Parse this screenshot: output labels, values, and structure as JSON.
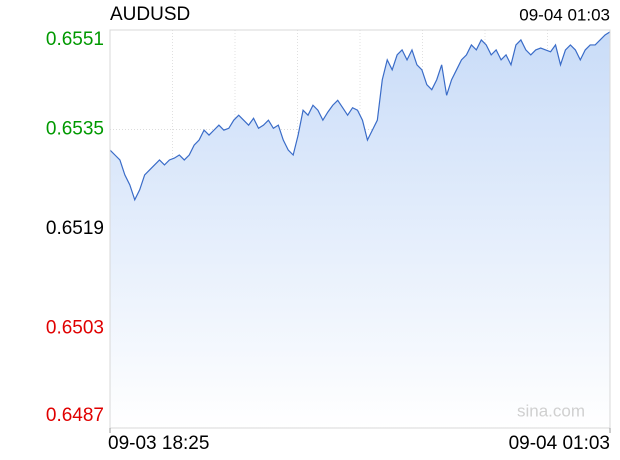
{
  "chart_data": {
    "type": "area-line",
    "title": "AUDUSD",
    "timestamp": "09-04 01:03",
    "watermark": "sina.com",
    "values": [
      0.65317,
      0.65309,
      0.65301,
      0.65277,
      0.65261,
      0.65237,
      0.65253,
      0.65277,
      0.65285,
      0.65293,
      0.65301,
      0.65293,
      0.65301,
      0.65304,
      0.65309,
      0.65301,
      0.65309,
      0.65325,
      0.65333,
      0.65349,
      0.65341,
      0.65349,
      0.65357,
      0.65349,
      0.65352,
      0.65365,
      0.65373,
      0.65365,
      0.65357,
      0.65368,
      0.65352,
      0.65357,
      0.65365,
      0.65352,
      0.65357,
      0.65333,
      0.65317,
      0.65309,
      0.65341,
      0.65381,
      0.65373,
      0.65389,
      0.65381,
      0.65365,
      0.65378,
      0.65389,
      0.65397,
      0.65385,
      0.65373,
      0.65385,
      0.65381,
      0.65365,
      0.65333,
      0.65349,
      0.65365,
      0.6543,
      0.65462,
      0.65446,
      0.6547,
      0.65478,
      0.65462,
      0.65478,
      0.65454,
      0.65446,
      0.65422,
      0.65414,
      0.6543,
      0.65454,
      0.65405,
      0.6543,
      0.65446,
      0.65462,
      0.6547,
      0.65486,
      0.65478,
      0.65494,
      0.65486,
      0.6547,
      0.65478,
      0.65462,
      0.6547,
      0.65454,
      0.65486,
      0.65494,
      0.65478,
      0.6547,
      0.65478,
      0.65481,
      0.65478,
      0.65475,
      0.65486,
      0.65454,
      0.65478,
      0.65486,
      0.65478,
      0.65462,
      0.65478,
      0.65486,
      0.65486,
      0.65494,
      0.65502,
      0.65507
    ],
    "color": "#3a6cc8",
    "ylim": [
      0.6487,
      0.6551
    ],
    "yticks": [
      0.6487,
      0.6503,
      0.6519,
      0.6535,
      0.6551
    ],
    "reference_line": 0.6519,
    "up_color": "#009900",
    "down_color": "#e00000",
    "neutral_color": "#000000",
    "xticks": [
      {
        "value": 0,
        "label": "09-03 18:25"
      },
      {
        "value": 101,
        "label": "09-04 01:03"
      }
    ],
    "x_divisions": 8,
    "grid": true
  }
}
